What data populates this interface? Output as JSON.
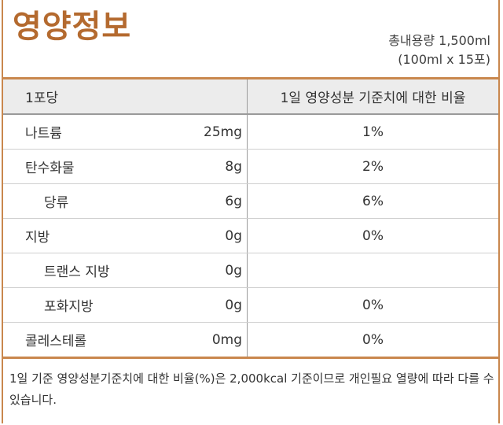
{
  "header": {
    "title": "영양정보",
    "total_volume": "총내용량 1,500ml",
    "package_detail": "(100ml x 15포)"
  },
  "table": {
    "col_serving": "1포당",
    "col_daily_ratio": "1일 영양성분 기준치에 대한 비율",
    "rows": [
      {
        "name": "나트륨",
        "amount": "25mg",
        "percent": "1%",
        "sub": false
      },
      {
        "name": "탄수화물",
        "amount": "8g",
        "percent": "2%",
        "sub": false
      },
      {
        "name": "당류",
        "amount": "6g",
        "percent": "6%",
        "sub": true
      },
      {
        "name": "지방",
        "amount": "0g",
        "percent": "0%",
        "sub": false
      },
      {
        "name": "트랜스 지방",
        "amount": "0g",
        "percent": "",
        "sub": true
      },
      {
        "name": "포화지방",
        "amount": "0g",
        "percent": "0%",
        "sub": true
      },
      {
        "name": "콜레스테롤",
        "amount": "0mg",
        "percent": "0%",
        "sub": false
      }
    ]
  },
  "footnote": "1일 기준 영양성분기준치에 대한 비율(%)은 2,000kcal 기준이므로 개인필요 열량에 따라 다를 수 있습니다.",
  "colors": {
    "accent": "#c9874d",
    "title": "#b46a2f",
    "header_bg": "#ececec"
  }
}
